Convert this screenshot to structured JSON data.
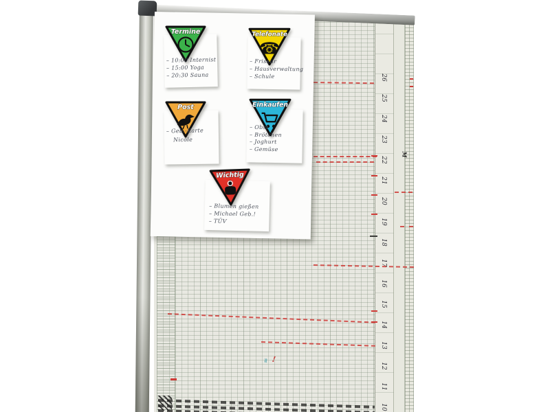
{
  "categories": [
    {
      "title": "Termine",
      "color": "#3bb24a",
      "icon": "clock-icon",
      "lines": [
        "10:00 Internist",
        "15:00 Yoga",
        "20:30 Sauna"
      ]
    },
    {
      "title": "Telefonate",
      "color": "#f2d504",
      "icon": "phone-icon",
      "lines": [
        "Friseur",
        "Hausverwaltung",
        "Schule"
      ]
    },
    {
      "title": "Post",
      "color": "#f0a83a",
      "icon": "pigeon-icon",
      "lines": [
        "Geb.-Karte",
        "Nicole"
      ]
    },
    {
      "title": "Einkaufen",
      "color": "#2cb6d9",
      "icon": "cart-icon",
      "lines": [
        "Obst",
        "Brötchen",
        "Joghurt",
        "Gemüse"
      ]
    },
    {
      "title": "Wichtig",
      "color": "#e13128",
      "icon": "reminder-hand-icon",
      "lines": [
        "Blumen gießen",
        "Michael Geb.!",
        "TÜV"
      ]
    }
  ],
  "planner": {
    "day_numbers": [
      "26",
      "25",
      "24",
      "23",
      "22",
      "21",
      "20",
      "19",
      "18",
      "17",
      "16",
      "15",
      "14",
      "13",
      "12",
      "11",
      "10"
    ],
    "weekday_mark": "M",
    "approx_mark": "≈",
    "important_mark": "!",
    "accent_red": "#cf3a36"
  },
  "glyphs": {
    "phone": "☎"
  }
}
